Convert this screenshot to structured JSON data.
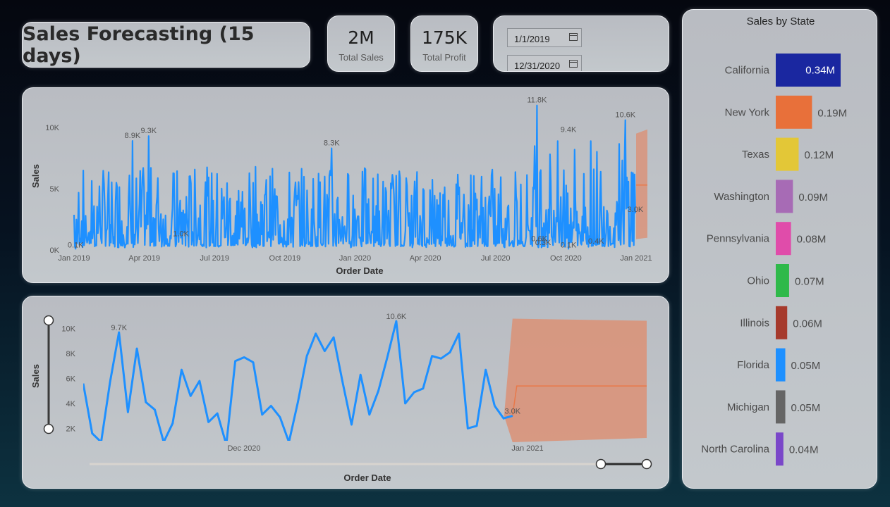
{
  "dashboard": {
    "title": "Sales Forecasting (15 days)",
    "kpis": {
      "total_sales_value": "2M",
      "total_sales_label": "Total Sales",
      "total_profit_value": "175K",
      "total_profit_label": "Total Profit"
    },
    "date_filter": {
      "start": "1/1/2019",
      "end": "12/31/2020"
    }
  },
  "colors": {
    "series": "#1e90ff",
    "forecast_band": "#d9937a",
    "forecast_line": "#e8794a"
  },
  "chart_data": [
    {
      "type": "line",
      "xlabel": "Order Date",
      "ylabel": "Sales",
      "x_ticks": [
        "Jan 2019",
        "Apr 2019",
        "Jul 2019",
        "Oct 2019",
        "Jan 2020",
        "Apr 2020",
        "Jul 2020",
        "Oct 2020",
        "Jan 2021"
      ],
      "y_ticks": [
        "0K",
        "5K",
        "10K"
      ],
      "ylim": [
        0,
        12000
      ],
      "data_labels": [
        {
          "x": "2019-01-03",
          "y": 100,
          "text": "0.1K"
        },
        {
          "x": "2019-03-18",
          "y": 8900,
          "text": "8.9K"
        },
        {
          "x": "2019-04-08",
          "y": 9300,
          "text": "9.3K"
        },
        {
          "x": "2019-05-20",
          "y": 1000,
          "text": "1.0K"
        },
        {
          "x": "2019-12-02",
          "y": 8300,
          "text": "8.3K"
        },
        {
          "x": "2020-08-25",
          "y": 11800,
          "text": "11.8K"
        },
        {
          "x": "2020-08-28",
          "y": 600,
          "text": "0.6K"
        },
        {
          "x": "2020-09-02",
          "y": 300,
          "text": "0.3K"
        },
        {
          "x": "2020-10-05",
          "y": 9400,
          "text": "9.4K"
        },
        {
          "x": "2020-10-05",
          "y": 100,
          "text": "0.1K"
        },
        {
          "x": "2020-11-10",
          "y": 400,
          "text": "0.4K"
        },
        {
          "x": "2020-12-18",
          "y": 10600,
          "text": "10.6K"
        },
        {
          "x": "2020-12-31",
          "y": 3000,
          "text": "3.0K"
        }
      ],
      "forecast": {
        "start": "2021-01-01",
        "end": "2021-01-15",
        "mean": 5300,
        "lower": 1000,
        "upper": 9500
      }
    },
    {
      "type": "line",
      "xlabel": "Order Date",
      "ylabel": "Sales",
      "x_ticks": [
        "Dec 2020",
        "Jan 2021"
      ],
      "y_ticks": [
        "2K",
        "4K",
        "6K",
        "8K",
        "10K"
      ],
      "ylim": [
        1000,
        11000
      ],
      "x": [
        0,
        1,
        2,
        3,
        4,
        5,
        6,
        7,
        8,
        9,
        10,
        11,
        12,
        13,
        14,
        15,
        16,
        17,
        18,
        19,
        20,
        21,
        22,
        23,
        24,
        25,
        26,
        27,
        28,
        29,
        30,
        31,
        32,
        33,
        34,
        35,
        36,
        37,
        38,
        39,
        40,
        41,
        42,
        43,
        44,
        45,
        46
      ],
      "values": [
        5600,
        1600,
        900,
        5700,
        9700,
        3300,
        8400,
        4100,
        3500,
        900,
        2400,
        6700,
        4600,
        5800,
        2500,
        3200,
        700,
        7400,
        7700,
        7300,
        3100,
        3800,
        2900,
        900,
        4100,
        7800,
        9600,
        8200,
        9300,
        5700,
        2300,
        6300,
        3100,
        5000,
        7700,
        10600,
        4000,
        4900,
        5200,
        7800,
        7600,
        8100,
        9600,
        2000,
        2200,
        6700,
        3800
      ],
      "tail": [
        {
          "x": 46,
          "y": 3800
        },
        {
          "x": 47,
          "y": 2800
        },
        {
          "x": 48,
          "y": 3000
        }
      ],
      "data_labels": [
        {
          "index": 4,
          "y": 9700,
          "text": "9.7K"
        },
        {
          "index": 35,
          "y": 10600,
          "text": "10.6K"
        },
        {
          "index": 48,
          "y": 3000,
          "text": "3.0K"
        }
      ],
      "forecast": {
        "start_index": 48,
        "end_index": 63,
        "mean": 5400,
        "lower": 1000,
        "upper": 10800
      }
    },
    {
      "type": "bar",
      "title": "Sales by State",
      "categories": [
        "California",
        "New York",
        "Texas",
        "Washington",
        "Pennsylvania",
        "Ohio",
        "Illinois",
        "Florida",
        "Michigan",
        "North Carolina"
      ],
      "values": [
        0.34,
        0.19,
        0.12,
        0.09,
        0.08,
        0.07,
        0.06,
        0.05,
        0.05,
        0.04
      ],
      "labels": [
        "0.34M",
        "0.19M",
        "0.12M",
        "0.09M",
        "0.08M",
        "0.07M",
        "0.06M",
        "0.05M",
        "0.05M",
        "0.04M"
      ],
      "unit": "M",
      "colors": [
        "#1a27a0",
        "#e8703a",
        "#e3c737",
        "#a76bb5",
        "#e04caa",
        "#2fb94a",
        "#a63a2c",
        "#1e90ff",
        "#656565",
        "#7a47c9"
      ]
    }
  ]
}
